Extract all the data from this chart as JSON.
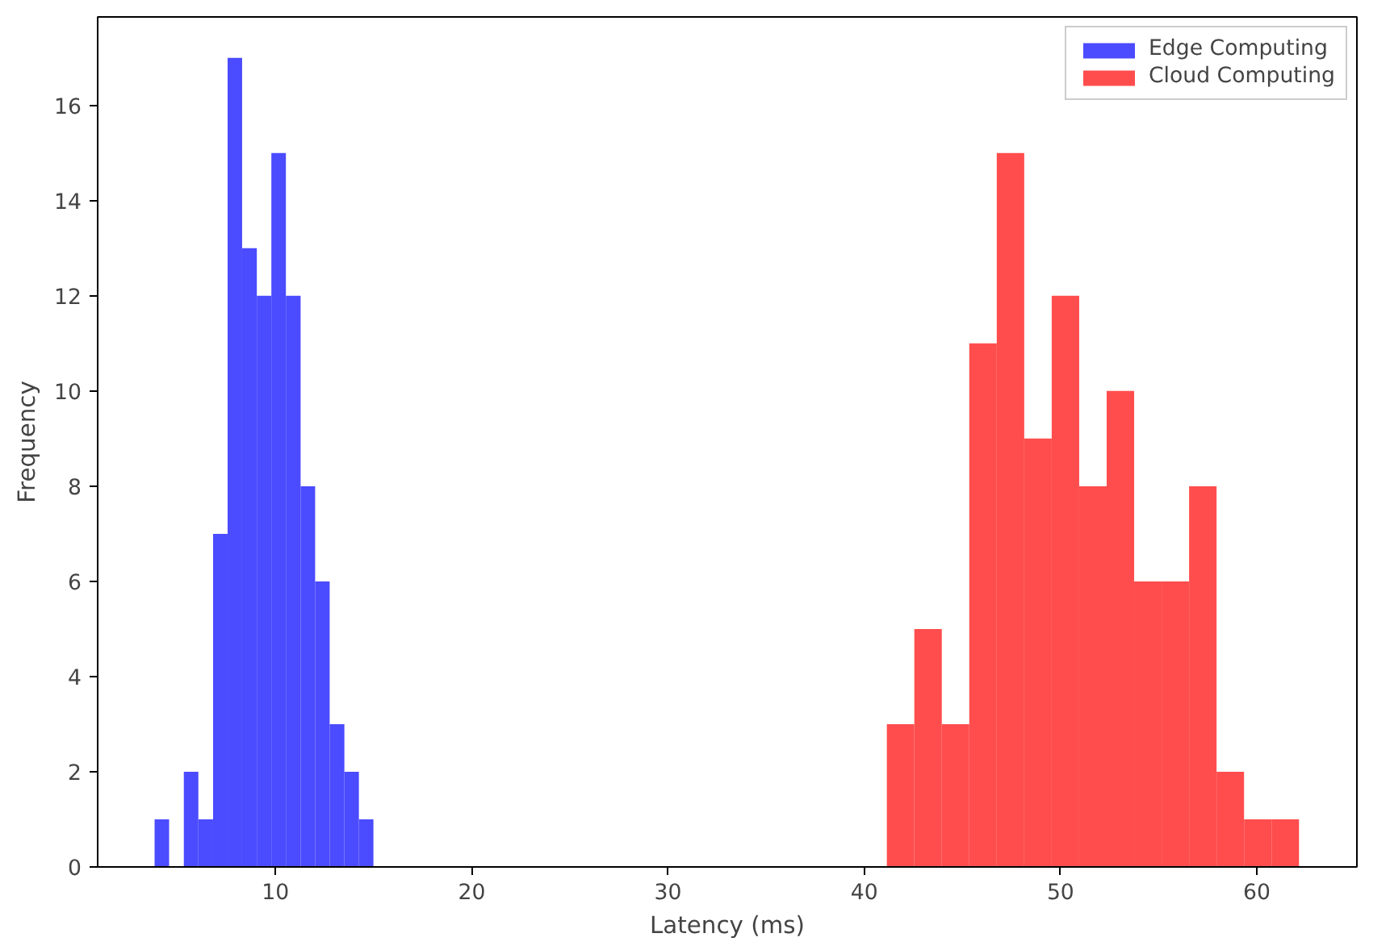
{
  "chart_data": {
    "type": "histogram",
    "xlabel": "Latency (ms)",
    "ylabel": "Frequency",
    "xlim": [
      0.94,
      65.1
    ],
    "ylim": [
      0,
      17.86
    ],
    "xticks": [
      10,
      20,
      30,
      40,
      50,
      60
    ],
    "yticks": [
      0,
      2,
      4,
      6,
      8,
      10,
      12,
      14,
      16
    ],
    "legend": "top right",
    "grid": false,
    "bins": [
      3.84,
      4.58,
      5.33,
      6.07,
      6.82,
      7.56,
      8.3,
      9.05,
      9.79,
      10.53,
      11.28,
      12.02,
      12.76,
      13.51,
      14.25,
      14.99,
      41.15,
      42.55,
      43.95,
      45.35,
      46.75,
      48.15,
      49.55,
      50.95,
      52.35,
      53.75,
      55.15,
      56.55,
      57.95,
      59.35,
      60.75,
      62.15
    ],
    "series": [
      {
        "name": "Edge Computing",
        "color": "#4b4bff",
        "values": [
          1,
          0,
          2,
          1,
          7,
          17,
          13,
          12,
          15,
          12,
          8,
          6,
          3,
          2,
          1,
          0,
          0,
          0,
          0,
          0,
          0,
          0,
          0,
          0,
          0,
          0,
          0,
          0,
          0,
          0,
          0
        ]
      },
      {
        "name": "Cloud Computing",
        "color": "#ff4d4d",
        "values": [
          0,
          0,
          0,
          0,
          0,
          0,
          0,
          0,
          0,
          0,
          0,
          0,
          0,
          0,
          0,
          0,
          3,
          5,
          3,
          11,
          15,
          9,
          12,
          8,
          10,
          6,
          6,
          8,
          2,
          1,
          1
        ]
      }
    ]
  }
}
